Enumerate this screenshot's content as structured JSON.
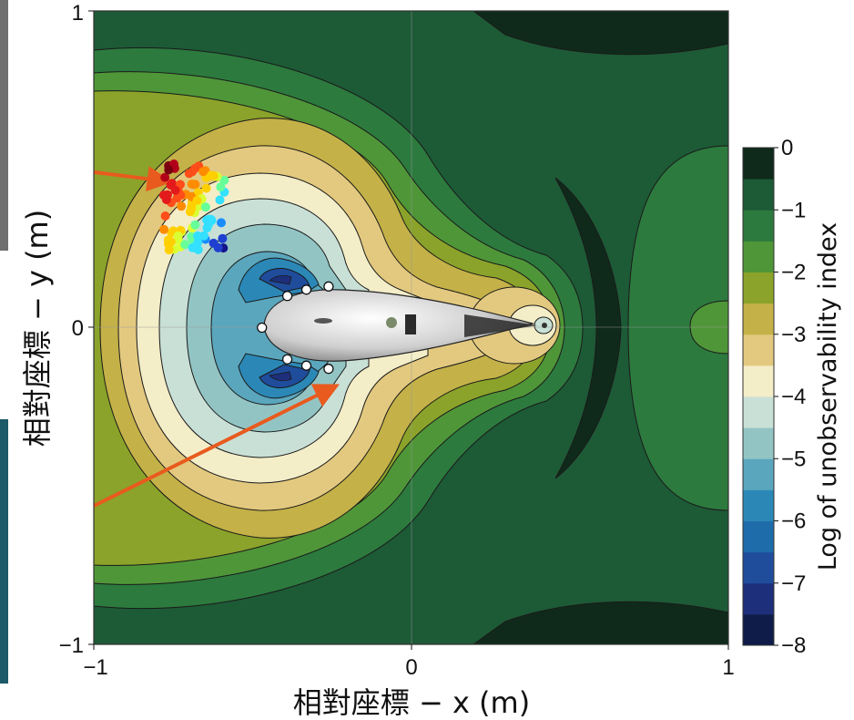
{
  "chart_data": {
    "type": "heatmap",
    "title": "",
    "xlabel": "相對座標 − x (m)",
    "ylabel": "相對座標 − y (m)",
    "colorbar_label": "Log of unobservability index",
    "xlim": [
      -1,
      1
    ],
    "ylim": [
      -1,
      1
    ],
    "x_ticks": [
      "−1",
      "0",
      "1"
    ],
    "y_ticks": [
      "1",
      "0",
      "−1"
    ],
    "colorbar_range": [
      -8,
      0
    ],
    "colorbar_ticks": [
      "0",
      "−1",
      "−2",
      "−3",
      "−4",
      "−5",
      "−6",
      "−7",
      "−8"
    ],
    "levels": [
      {
        "min": -8.0,
        "max": -7.5,
        "color": "#0f1c49"
      },
      {
        "min": -7.5,
        "max": -7.0,
        "color": "#1d2f7a"
      },
      {
        "min": -7.0,
        "max": -6.5,
        "color": "#1f4d9c"
      },
      {
        "min": -6.5,
        "max": -6.0,
        "color": "#1f6cab"
      },
      {
        "min": -6.0,
        "max": -5.5,
        "color": "#2b88b6"
      },
      {
        "min": -5.5,
        "max": -5.0,
        "color": "#5aa6bd"
      },
      {
        "min": -5.0,
        "max": -4.5,
        "color": "#93c4c4"
      },
      {
        "min": -4.5,
        "max": -4.0,
        "color": "#c9e0d6"
      },
      {
        "min": -4.0,
        "max": -3.5,
        "color": "#f3edc8"
      },
      {
        "min": -3.5,
        "max": -3.0,
        "color": "#e3c97f"
      },
      {
        "min": -3.0,
        "max": -2.5,
        "color": "#c4b148"
      },
      {
        "min": -2.5,
        "max": -2.0,
        "color": "#8ba32a"
      },
      {
        "min": -2.0,
        "max": -1.5,
        "color": "#4f9638"
      },
      {
        "min": -1.5,
        "max": -1.0,
        "color": "#2c7a3e"
      },
      {
        "min": -1.0,
        "max": -0.5,
        "color": "#1d5a36"
      },
      {
        "min": -0.5,
        "max": 0.0,
        "color": "#0f2a1a"
      }
    ],
    "sensor_points": [
      {
        "x": -0.47,
        "y": 0.0
      },
      {
        "x": -0.39,
        "y": 0.1
      },
      {
        "x": -0.33,
        "y": 0.12
      },
      {
        "x": -0.26,
        "y": 0.13
      },
      {
        "x": -0.39,
        "y": -0.1
      },
      {
        "x": -0.33,
        "y": -0.12
      },
      {
        "x": -0.26,
        "y": -0.13
      }
    ],
    "source_cluster_center": {
      "x": -0.68,
      "y": 0.38
    }
  },
  "colors": {
    "arrow": "#e85a1e",
    "contour_line": "#1a1a1a",
    "grid": "#9a9a9a"
  }
}
